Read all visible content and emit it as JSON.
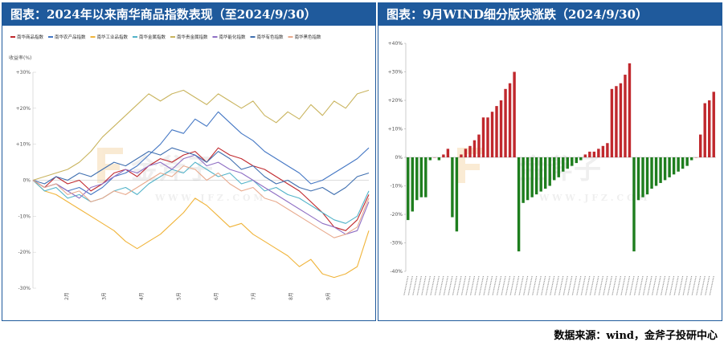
{
  "left_panel": {
    "title": "图表：2024年以来南华商品指数表现（至2024/9/30）"
  },
  "right_panel": {
    "title": "图表：9月WIND细分版块涨跌（2024/9/30）"
  },
  "watermark": {
    "brand": "金斧子",
    "url": "W W W . J F Z . C O M"
  },
  "source": "数据来源：wind，金斧子投研中心",
  "colors": {
    "frame": "#1f5a9c",
    "up": "#c0282d",
    "down": "#1e7e1e"
  },
  "chart_data": [
    {
      "type": "line",
      "ylabel": "收益率(%)",
      "ylim": [
        -30,
        30
      ],
      "yticks": [
        "+30%",
        "+20%",
        "+10%",
        "0%",
        "-10%",
        "-20%",
        "-30%"
      ],
      "xticks": [
        "2月",
        "3月",
        "4月",
        "5月",
        "6月",
        "7月",
        "8月",
        "9月"
      ],
      "legend_position": "top-left",
      "series": [
        {
          "name": "南华商品指数",
          "color": "#c0282d",
          "values": [
            0,
            -2,
            1,
            -1,
            0,
            -3,
            -1,
            2,
            3,
            1,
            4,
            6,
            5,
            7,
            8,
            5,
            9,
            7,
            6,
            4,
            3,
            1,
            -1,
            -3,
            -6,
            -9,
            -13,
            -14,
            -11,
            -4
          ]
        },
        {
          "name": "南华农产品指数",
          "color": "#4477c4",
          "values": [
            0,
            -2,
            -1,
            -3,
            -2,
            -4,
            -2,
            1,
            2,
            4,
            7,
            10,
            14,
            13,
            17,
            15,
            19,
            16,
            13,
            11,
            8,
            6,
            4,
            2,
            -1,
            0,
            2,
            4,
            6,
            9
          ]
        },
        {
          "name": "南华工业品指数",
          "color": "#f0b43a",
          "values": [
            0,
            -3,
            -4,
            -6,
            -8,
            -10,
            -12,
            -14,
            -17,
            -19,
            -17,
            -15,
            -12,
            -9,
            -5,
            -7,
            -10,
            -13,
            -12,
            -15,
            -17,
            -19,
            -21,
            -24,
            -22,
            -26,
            -27,
            -26,
            -24,
            -14
          ]
        },
        {
          "name": "南华金属指数",
          "color": "#52b3c9",
          "values": [
            0,
            -3,
            -2,
            -5,
            -4,
            -6,
            -5,
            -3,
            -2,
            -4,
            -1,
            1,
            3,
            2,
            5,
            3,
            1,
            2,
            -1,
            0,
            -3,
            -2,
            -4,
            -5,
            -7,
            -9,
            -11,
            -12,
            -10,
            -3
          ]
        },
        {
          "name": "南华贵金属指数",
          "color": "#c9b45e",
          "values": [
            0,
            1,
            2,
            3,
            5,
            8,
            12,
            15,
            18,
            21,
            24,
            22,
            24,
            25,
            23,
            21,
            24,
            22,
            20,
            22,
            18,
            16,
            19,
            17,
            21,
            18,
            22,
            20,
            24,
            25
          ]
        },
        {
          "name": "南华能化指数",
          "color": "#8f6fc4",
          "values": [
            0,
            -2,
            -1,
            -3,
            -5,
            -2,
            -1,
            1,
            3,
            2,
            4,
            5,
            3,
            6,
            7,
            4,
            5,
            3,
            2,
            0,
            -2,
            -4,
            -6,
            -8,
            -10,
            -12,
            -13,
            -15,
            -14,
            -6
          ]
        },
        {
          "name": "南华有色指数",
          "color": "#3f6fb0",
          "values": [
            0,
            -1,
            1,
            0,
            2,
            1,
            3,
            5,
            4,
            6,
            8,
            7,
            9,
            8,
            7,
            5,
            8,
            6,
            3,
            4,
            1,
            -1,
            0,
            -2,
            -3,
            -2,
            -4,
            -2,
            1,
            2
          ]
        },
        {
          "name": "南华黑色指数",
          "color": "#e8a98c",
          "values": [
            0,
            -2,
            -1,
            -4,
            -3,
            -6,
            -5,
            -3,
            -4,
            -2,
            0,
            2,
            1,
            4,
            3,
            0,
            2,
            -1,
            -3,
            -2,
            -5,
            -6,
            -8,
            -10,
            -12,
            -14,
            -16,
            -15,
            -13,
            -5
          ]
        }
      ]
    },
    {
      "type": "bar",
      "ylim": [
        -40,
        40
      ],
      "yticks": [
        "+40%",
        "+30%",
        "+20%",
        "+10%",
        "0%",
        "-10%",
        "-20%",
        "-30%",
        "-40%"
      ],
      "values": [
        -22,
        -19,
        -15,
        -14,
        -14,
        -1,
        0,
        -1,
        1,
        3,
        -21,
        -26,
        1,
        3,
        4,
        6,
        8,
        14,
        14,
        16,
        18,
        20,
        24,
        26,
        30,
        -33,
        -16,
        -15,
        -14,
        -13,
        -12,
        -11,
        -10,
        -8,
        -7,
        -5,
        -4,
        -3,
        -2,
        -1,
        1,
        2,
        2,
        3,
        4,
        5,
        24,
        25,
        26,
        29,
        33,
        -33,
        -15,
        -14,
        -13,
        -11,
        -10,
        -9,
        -8,
        -7,
        -6,
        -5,
        -4,
        -3,
        -1,
        0,
        8,
        19,
        20,
        23
      ]
    }
  ]
}
